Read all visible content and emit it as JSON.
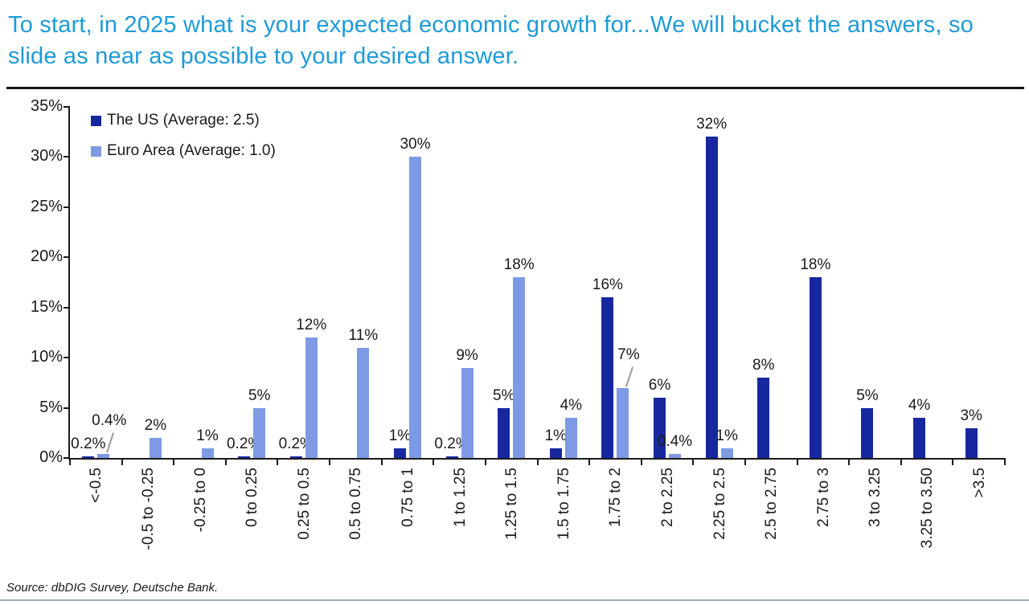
{
  "header": {
    "title": "To start, in 2025 what is your expected economic growth for...We will bucket the answers, so slide as near as possible to your desired answer."
  },
  "footer": {
    "source": "Source: dbDIG Survey, Deutsche Bank."
  },
  "colors": {
    "title_blue": "#1E9BD7",
    "us_navy": "#17289F",
    "euro_light_blue": "#7E9AE4",
    "axis_black": "#1a1a1a",
    "bottom_rule_gray": "#9DAFBA"
  },
  "chart_data": {
    "type": "bar",
    "title": "",
    "xlabel": "",
    "ylabel": "",
    "ylim": [
      0,
      35
    ],
    "ytick_step": 5,
    "ytick_labels": [
      "0%",
      "5%",
      "10%",
      "15%",
      "20%",
      "25%",
      "30%",
      "35%"
    ],
    "grid": false,
    "legend_position": "top-left",
    "categories": [
      "<-0.5",
      "-0.5 to -0.25",
      "-0.25 to 0",
      "0 to 0.25",
      "0.25 to 0.5",
      "0.5 to 0.75",
      "0.75 to 1",
      "1 to 1.25",
      "1.25 to 1.5",
      "1.5 to 1.75",
      "1.75 to 2",
      "2 to 2.25",
      "2.25 to 2.5",
      "2.5 to 2.75",
      "2.75 to 3",
      "3 to 3.25",
      "3.25 to 3.50",
      ">3.5"
    ],
    "series": [
      {
        "name": "The US (Average: 2.5)",
        "color": "#17289F",
        "values": [
          0.2,
          0,
          0,
          0.2,
          0.2,
          0,
          1,
          0.2,
          5,
          1,
          16,
          6,
          32,
          8,
          18,
          5,
          4,
          3
        ],
        "labels": [
          "0.2%",
          "",
          "",
          "0.2%",
          "0.2%",
          "",
          "1%",
          "0.2%",
          "5%",
          "1%",
          "16%",
          "6%",
          "32%",
          "8%",
          "18%",
          "5%",
          "4%",
          "3%"
        ],
        "leader_label_indices": []
      },
      {
        "name": "Euro Area (Average: 1.0)",
        "color": "#7E9AE4",
        "values": [
          0.4,
          2,
          1,
          5,
          12,
          11,
          30,
          9,
          18,
          4,
          7,
          0.4,
          1,
          0,
          0,
          0,
          0,
          0
        ],
        "labels": [
          "0.4%",
          "2%",
          "1%",
          "5%",
          "12%",
          "11%",
          "30%",
          "9%",
          "18%",
          "4%",
          "7%",
          "0.4%",
          "1%",
          "",
          "",
          "",
          "",
          ""
        ],
        "leader_label_indices": [
          0,
          10
        ]
      }
    ]
  }
}
